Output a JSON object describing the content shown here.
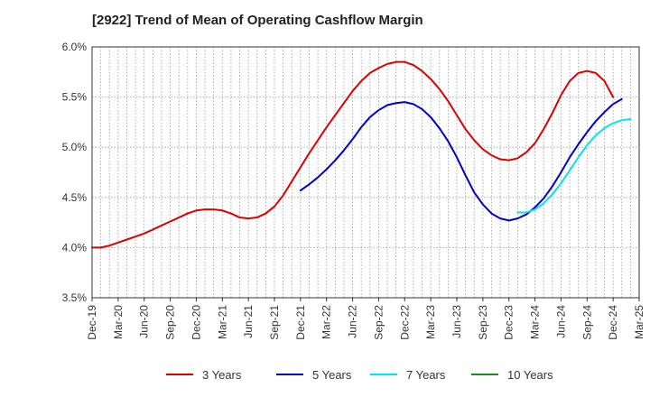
{
  "chart_data": {
    "type": "line",
    "title": "[2922]  Trend of Mean of Operating Cashflow Margin",
    "xlabel": "",
    "ylabel": "",
    "ylim": [
      3.5,
      6.0
    ],
    "y_ticks": [
      "3.5%",
      "4.0%",
      "4.5%",
      "5.0%",
      "5.5%",
      "6.0%"
    ],
    "x_tick_labels": [
      "Dec-19",
      "Mar-20",
      "Jun-20",
      "Sep-20",
      "Dec-20",
      "Mar-21",
      "Jun-21",
      "Sep-21",
      "Dec-21",
      "Mar-22",
      "Jun-22",
      "Sep-22",
      "Dec-22",
      "Mar-23",
      "Jun-23",
      "Sep-23",
      "Dec-23",
      "Mar-24",
      "Jun-24",
      "Sep-24",
      "Dec-24",
      "Mar-25"
    ],
    "grid": true,
    "legend_position": "bottom",
    "series": [
      {
        "name": "3 Years",
        "color": "#dd0000",
        "points": [
          [
            "2019-12",
            4.0
          ],
          [
            "2020-01",
            4.0
          ],
          [
            "2020-02",
            4.02
          ],
          [
            "2020-03",
            4.05
          ],
          [
            "2020-04",
            4.08
          ],
          [
            "2020-05",
            4.11
          ],
          [
            "2020-06",
            4.14
          ],
          [
            "2020-07",
            4.18
          ],
          [
            "2020-08",
            4.22
          ],
          [
            "2020-09",
            4.26
          ],
          [
            "2020-10",
            4.3
          ],
          [
            "2020-11",
            4.34
          ],
          [
            "2020-12",
            4.37
          ],
          [
            "2021-01",
            4.38
          ],
          [
            "2021-02",
            4.38
          ],
          [
            "2021-03",
            4.37
          ],
          [
            "2021-04",
            4.34
          ],
          [
            "2021-05",
            4.3
          ],
          [
            "2021-06",
            4.29
          ],
          [
            "2021-07",
            4.3
          ],
          [
            "2021-08",
            4.34
          ],
          [
            "2021-09",
            4.41
          ],
          [
            "2021-10",
            4.52
          ],
          [
            "2021-11",
            4.66
          ],
          [
            "2021-12",
            4.8
          ],
          [
            "2022-01",
            4.94
          ],
          [
            "2022-02",
            5.07
          ],
          [
            "2022-03",
            5.2
          ],
          [
            "2022-04",
            5.32
          ],
          [
            "2022-05",
            5.44
          ],
          [
            "2022-06",
            5.56
          ],
          [
            "2022-07",
            5.66
          ],
          [
            "2022-08",
            5.74
          ],
          [
            "2022-09",
            5.79
          ],
          [
            "2022-10",
            5.83
          ],
          [
            "2022-11",
            5.85
          ],
          [
            "2022-12",
            5.85
          ],
          [
            "2023-01",
            5.82
          ],
          [
            "2023-02",
            5.76
          ],
          [
            "2023-03",
            5.68
          ],
          [
            "2023-04",
            5.58
          ],
          [
            "2023-05",
            5.46
          ],
          [
            "2023-06",
            5.32
          ],
          [
            "2023-07",
            5.18
          ],
          [
            "2023-08",
            5.07
          ],
          [
            "2023-09",
            4.98
          ],
          [
            "2023-10",
            4.92
          ],
          [
            "2023-11",
            4.88
          ],
          [
            "2023-12",
            4.87
          ],
          [
            "2024-01",
            4.89
          ],
          [
            "2024-02",
            4.95
          ],
          [
            "2024-03",
            5.04
          ],
          [
            "2024-04",
            5.18
          ],
          [
            "2024-05",
            5.34
          ],
          [
            "2024-06",
            5.52
          ],
          [
            "2024-07",
            5.66
          ],
          [
            "2024-08",
            5.74
          ],
          [
            "2024-09",
            5.76
          ],
          [
            "2024-10",
            5.74
          ],
          [
            "2024-11",
            5.66
          ],
          [
            "2024-12",
            5.5
          ]
        ]
      },
      {
        "name": "5 Years",
        "color": "#0000cc",
        "points": [
          [
            "2021-12",
            4.57
          ],
          [
            "2022-01",
            4.63
          ],
          [
            "2022-02",
            4.7
          ],
          [
            "2022-03",
            4.78
          ],
          [
            "2022-04",
            4.87
          ],
          [
            "2022-05",
            4.97
          ],
          [
            "2022-06",
            5.08
          ],
          [
            "2022-07",
            5.2
          ],
          [
            "2022-08",
            5.3
          ],
          [
            "2022-09",
            5.37
          ],
          [
            "2022-10",
            5.42
          ],
          [
            "2022-11",
            5.44
          ],
          [
            "2022-12",
            5.45
          ],
          [
            "2023-01",
            5.43
          ],
          [
            "2023-02",
            5.38
          ],
          [
            "2023-03",
            5.3
          ],
          [
            "2023-04",
            5.19
          ],
          [
            "2023-05",
            5.06
          ],
          [
            "2023-06",
            4.9
          ],
          [
            "2023-07",
            4.72
          ],
          [
            "2023-08",
            4.55
          ],
          [
            "2023-09",
            4.43
          ],
          [
            "2023-10",
            4.34
          ],
          [
            "2023-11",
            4.29
          ],
          [
            "2023-12",
            4.27
          ],
          [
            "2024-01",
            4.29
          ],
          [
            "2024-02",
            4.33
          ],
          [
            "2024-03",
            4.4
          ],
          [
            "2024-04",
            4.49
          ],
          [
            "2024-05",
            4.61
          ],
          [
            "2024-06",
            4.75
          ],
          [
            "2024-07",
            4.9
          ],
          [
            "2024-08",
            5.03
          ],
          [
            "2024-09",
            5.15
          ],
          [
            "2024-10",
            5.26
          ],
          [
            "2024-11",
            5.35
          ],
          [
            "2024-12",
            5.43
          ],
          [
            "2025-01",
            5.48
          ]
        ]
      },
      {
        "name": "7 Years",
        "color": "#00e5ee",
        "points": [
          [
            "2024-01",
            4.35
          ],
          [
            "2024-02",
            4.35
          ],
          [
            "2024-03",
            4.38
          ],
          [
            "2024-04",
            4.44
          ],
          [
            "2024-05",
            4.53
          ],
          [
            "2024-06",
            4.64
          ],
          [
            "2024-07",
            4.77
          ],
          [
            "2024-08",
            4.9
          ],
          [
            "2024-09",
            5.02
          ],
          [
            "2024-10",
            5.12
          ],
          [
            "2024-11",
            5.19
          ],
          [
            "2024-12",
            5.24
          ],
          [
            "2025-01",
            5.27
          ],
          [
            "2025-02",
            5.28
          ]
        ]
      },
      {
        "name": "10 Years",
        "color": "#228822",
        "points": []
      }
    ]
  }
}
